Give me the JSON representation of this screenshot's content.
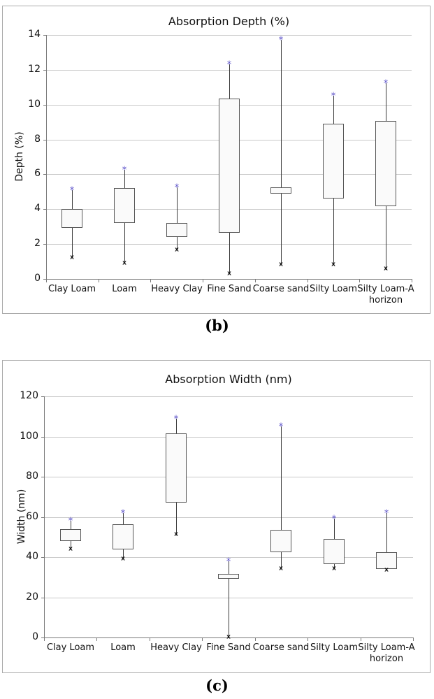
{
  "figure": {
    "captions": {
      "b": "(b)",
      "c": "(c)"
    }
  },
  "chart_data": [
    {
      "id": "b",
      "type": "box",
      "title": "Absorption Depth (%)",
      "ylabel": "Depth (%)",
      "xlabel": "",
      "ylim": [
        0,
        14
      ],
      "ytick_step": 2,
      "grid": true,
      "legend": "none",
      "marker_high_glyph": "*",
      "marker_low_glyph": "x",
      "colors": {
        "marker_high": "#5b51c9",
        "marker_low": "#111111",
        "box_fill": "#fafafa",
        "box_border": "#565656",
        "gridline": "#c9c9c9"
      },
      "categories": [
        "Clay Loam",
        "Loam",
        "Heavy Clay",
        "Fine Sand",
        "Coarse sand",
        "Silty Loam",
        "Silty Loam-A\nhorizon"
      ],
      "boxes": [
        {
          "category": "Clay Loam",
          "min": 1.2,
          "q1": 2.9,
          "q3": 4.0,
          "max": 5.1
        },
        {
          "category": "Loam",
          "min": 0.9,
          "q1": 3.2,
          "q3": 5.2,
          "max": 6.25
        },
        {
          "category": "Heavy Clay",
          "min": 1.65,
          "q1": 2.4,
          "q3": 3.2,
          "max": 5.25
        },
        {
          "category": "Fine Sand",
          "min": 0.3,
          "q1": 2.65,
          "q3": 10.35,
          "max": 12.3
        },
        {
          "category": "Coarse sand",
          "min": 0.8,
          "q1": 4.9,
          "q3": 5.25,
          "max": 13.7
        },
        {
          "category": "Silty Loam",
          "min": 0.8,
          "q1": 4.6,
          "q3": 8.9,
          "max": 10.5
        },
        {
          "category": "Silty Loam-A\nhorizon",
          "min": 0.55,
          "q1": 4.15,
          "q3": 9.05,
          "max": 11.25
        }
      ]
    },
    {
      "id": "c",
      "type": "box",
      "title": "Absorption Width (nm)",
      "ylabel": "Width (nm)",
      "xlabel": "",
      "ylim": [
        0,
        120
      ],
      "ytick_step": 20,
      "grid": true,
      "legend": "none",
      "marker_high_glyph": "*",
      "marker_low_glyph": "x",
      "colors": {
        "marker_high": "#5b51c9",
        "marker_low": "#111111",
        "box_fill": "#fafafa",
        "box_border": "#565656",
        "gridline": "#c9c9c9"
      },
      "categories": [
        "Clay Loam",
        "Loam",
        "Heavy Clay",
        "Fine Sand",
        "Coarse sand",
        "Silty Loam",
        "Silty Loam-A\nhorizon"
      ],
      "boxes": [
        {
          "category": "Clay Loam",
          "min": 44,
          "q1": 48,
          "q3": 54,
          "max": 58
        },
        {
          "category": "Loam",
          "min": 39,
          "q1": 44,
          "q3": 56.5,
          "max": 62
        },
        {
          "category": "Heavy Clay",
          "min": 51,
          "q1": 67,
          "q3": 101.5,
          "max": 109
        },
        {
          "category": "Fine Sand",
          "min": 0,
          "q1": 29,
          "q3": 31.5,
          "max": 38
        },
        {
          "category": "Coarse sand",
          "min": 34,
          "q1": 42.5,
          "q3": 53.5,
          "max": 105
        },
        {
          "category": "Silty Loam",
          "min": 34,
          "q1": 36.5,
          "q3": 49,
          "max": 59
        },
        {
          "category": "Silty Loam-A\nhorizon",
          "min": 33.5,
          "q1": 34,
          "q3": 42.5,
          "max": 62
        }
      ]
    }
  ]
}
